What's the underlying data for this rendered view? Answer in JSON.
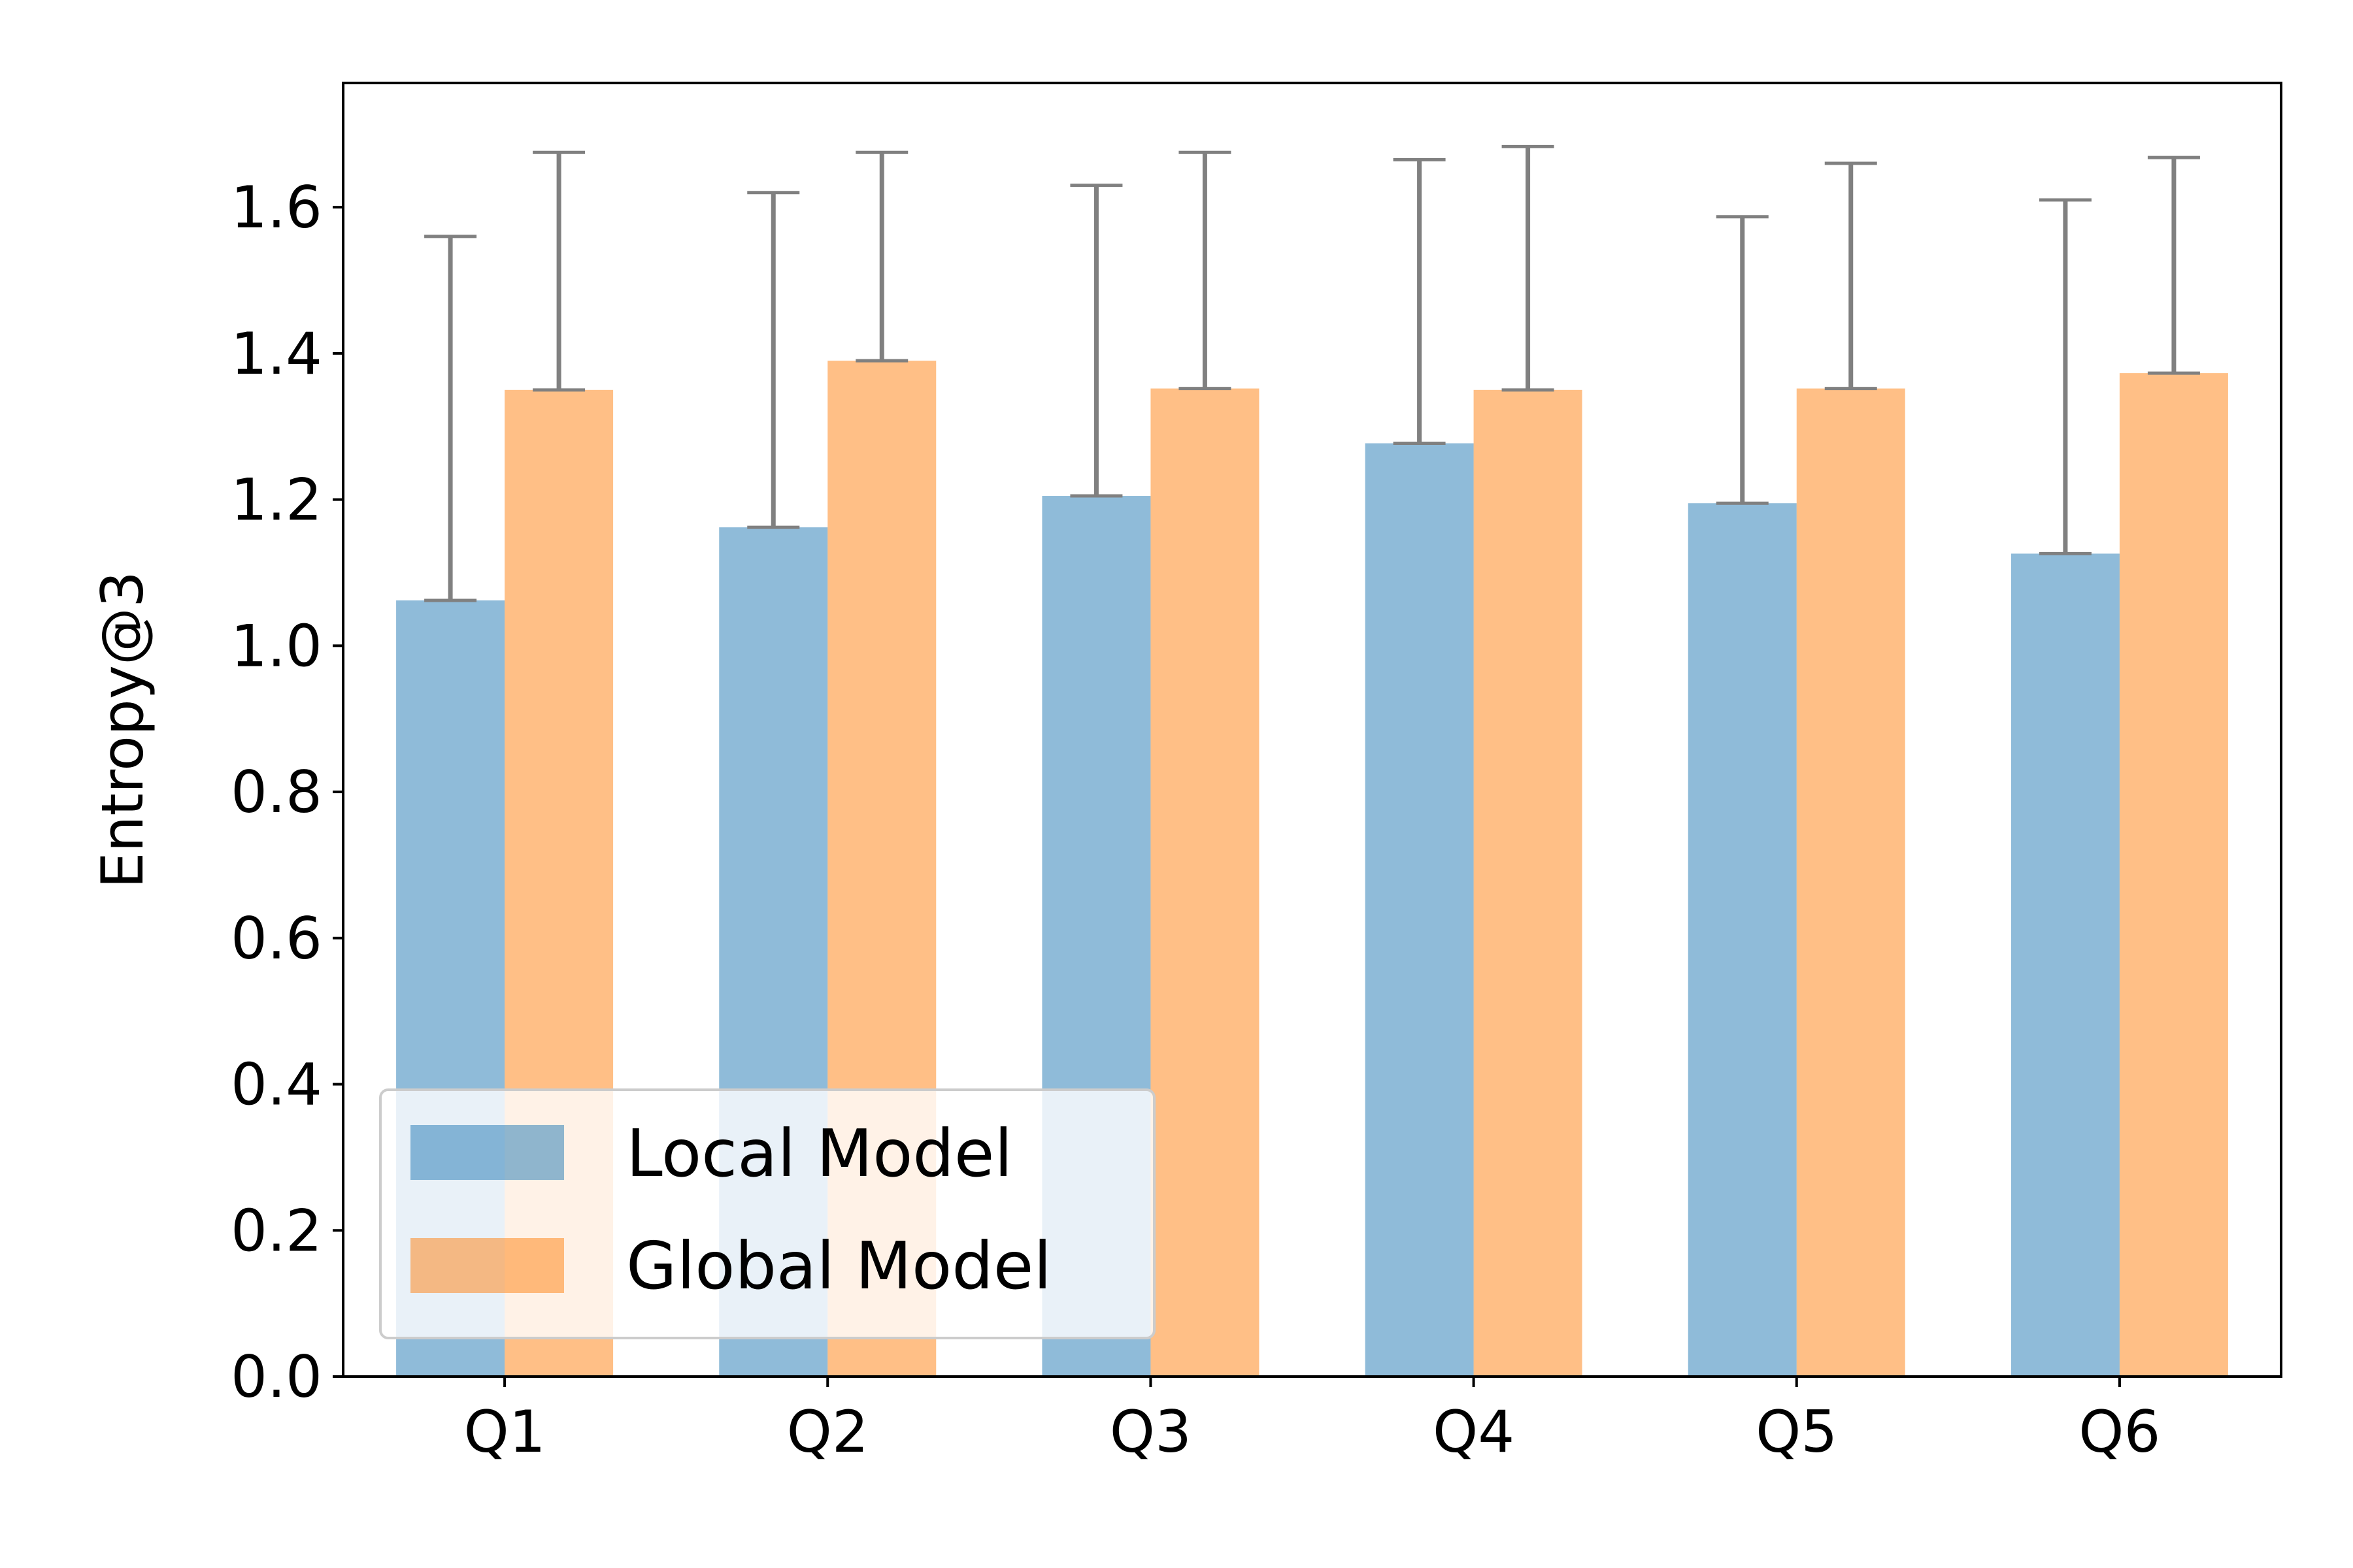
{
  "chart_data": {
    "type": "bar",
    "categories": [
      "Q1",
      "Q2",
      "Q3",
      "Q4",
      "Q5",
      "Q6"
    ],
    "series": [
      {
        "name": "Local Model",
        "color": "#1f77b4",
        "opacity": 0.5,
        "values": [
          1.062,
          1.162,
          1.205,
          1.277,
          1.195,
          1.126
        ],
        "error_upper": [
          1.56,
          1.62,
          1.63,
          1.665,
          1.587,
          1.61
        ]
      },
      {
        "name": "Global Model",
        "color": "#ff7f0e",
        "opacity": 0.5,
        "values": [
          1.35,
          1.39,
          1.352,
          1.35,
          1.352,
          1.373
        ],
        "error_upper": [
          1.675,
          1.675,
          1.675,
          1.683,
          1.66,
          1.668
        ]
      }
    ],
    "error_bar_color": "#808080",
    "title": "",
    "xlabel": "",
    "ylabel": "Entropy@3",
    "ylim": [
      0,
      1.77
    ],
    "yticks": [
      0.0,
      0.2,
      0.4,
      0.6,
      0.8,
      1.0,
      1.2,
      1.4,
      1.6
    ],
    "ytick_labels": [
      "0.0",
      "0.2",
      "0.4",
      "0.6",
      "0.8",
      "1.0",
      "1.2",
      "1.4",
      "1.6"
    ],
    "grid": false,
    "legend_position": "lower-left"
  }
}
